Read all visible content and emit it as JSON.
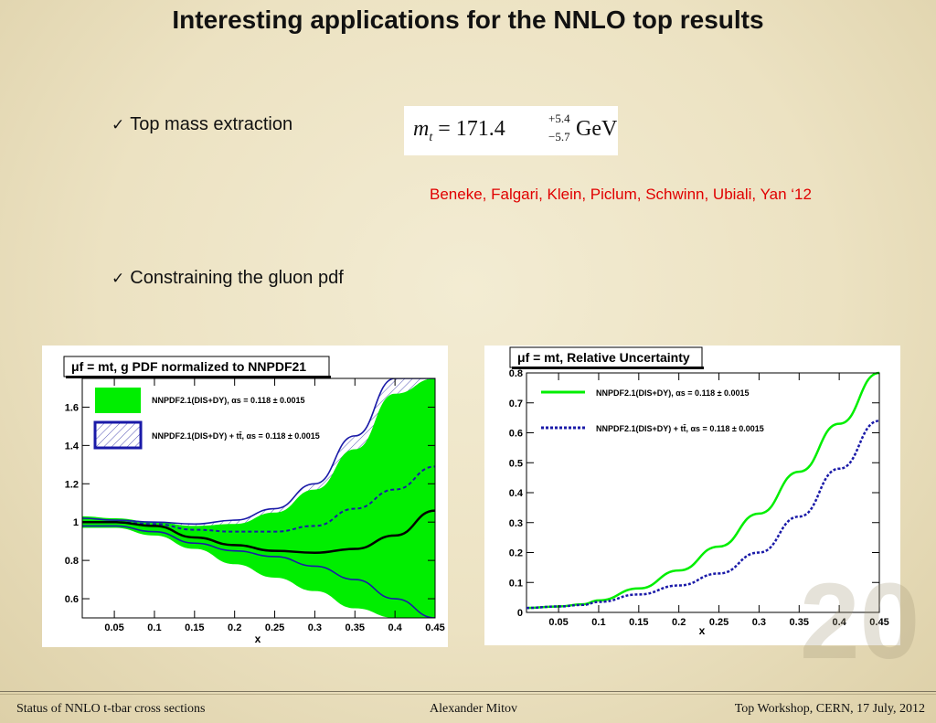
{
  "slide": {
    "title": "Interesting applications for the NNLO top results",
    "bullet1": "Top mass extraction",
    "bullet2": "Constraining the gluon pdf",
    "check_glyph": "✓",
    "formula": {
      "lhs": "m",
      "lhs_sub": "t",
      "eq": " = 171.4",
      "sup": "+5.4",
      "sub": "−5.7",
      "unit": "GeV"
    },
    "citation": "Beneke, Falgari, Klein, Piclum, Schwinn, Ubiali, Yan ‘12",
    "page_number": "20"
  },
  "footer": {
    "left": "Status of NNLO t-tbar cross sections",
    "center": "Alexander Mitov",
    "right": "Top Workshop, CERN, 17 July, 2012"
  },
  "colors": {
    "green": "#00ee00",
    "blue": "#1a1aa8",
    "citation_red": "#e00000"
  },
  "chart_data": [
    {
      "type": "area",
      "title": "μf = mt, g PDF normalized to NNPDF21",
      "xlabel": "x",
      "ylabel": "",
      "xlim": [
        0.01,
        0.45
      ],
      "ylim": [
        0.5,
        1.75
      ],
      "xticks": [
        "0.05",
        "0.1",
        "0.15",
        "0.2",
        "0.25",
        "0.3",
        "0.35",
        "0.4",
        "0.45"
      ],
      "yticks": [
        "0.6",
        "0.8",
        "1",
        "1.2",
        "1.4",
        "1.6"
      ],
      "legend": [
        "NNPDF2.1(DIS+DY), αs = 0.118 ± 0.0015",
        "NNPDF2.1(DIS+DY) + tt̄, αs = 0.118 ± 0.0015"
      ],
      "x": [
        0.01,
        0.05,
        0.1,
        0.15,
        0.2,
        0.25,
        0.3,
        0.35,
        0.4,
        0.45
      ],
      "series": [
        {
          "name": "NNPDF2.1(DIS+DY), αs = 0.118 ± 0.0015",
          "lower": [
            0.97,
            0.97,
            0.93,
            0.86,
            0.78,
            0.71,
            0.64,
            0.55,
            0.5,
            0.5
          ],
          "upper": [
            1.03,
            1.02,
            1.0,
            0.98,
            0.99,
            1.05,
            1.17,
            1.38,
            1.67,
            1.75
          ]
        },
        {
          "name": "NNPDF2.1(DIS+DY) + tt̄, αs = 0.118 ± 0.0015",
          "lower": [
            0.98,
            0.98,
            0.95,
            0.89,
            0.85,
            0.82,
            0.77,
            0.7,
            0.6,
            0.5
          ],
          "central": [
            1.0,
            1.0,
            0.99,
            0.96,
            0.95,
            0.95,
            0.98,
            1.07,
            1.17,
            1.29
          ],
          "upper": [
            1.02,
            1.01,
            1.0,
            0.99,
            1.01,
            1.07,
            1.2,
            1.45,
            1.75,
            1.75
          ]
        },
        {
          "name": "",
          "central": [
            1.0,
            1.0,
            0.98,
            0.92,
            0.88,
            0.85,
            0.84,
            0.86,
            0.93,
            1.06
          ]
        }
      ]
    },
    {
      "type": "line",
      "title": "μf = mt, Relative Uncertainty",
      "xlabel": "x",
      "ylabel": "",
      "xlim": [
        0.01,
        0.45
      ],
      "ylim": [
        0,
        0.8
      ],
      "xticks": [
        "0.05",
        "0.1",
        "0.15",
        "0.2",
        "0.25",
        "0.3",
        "0.35",
        "0.4",
        "0.45"
      ],
      "yticks": [
        "0",
        "0.1",
        "0.2",
        "0.3",
        "0.4",
        "0.5",
        "0.6",
        "0.7",
        "0.8"
      ],
      "x": [
        0.01,
        0.05,
        0.08,
        0.1,
        0.15,
        0.2,
        0.25,
        0.3,
        0.35,
        0.4,
        0.45
      ],
      "series": [
        {
          "name": "NNPDF2.1(DIS+DY), αs = 0.118 ± 0.0015",
          "values": [
            0.015,
            0.02,
            0.027,
            0.04,
            0.08,
            0.14,
            0.22,
            0.33,
            0.47,
            0.63,
            0.8
          ]
        },
        {
          "name": "NNPDF2.1(DIS+DY) + tt̄, αs = 0.118 ± 0.0015",
          "values": [
            0.015,
            0.02,
            0.025,
            0.035,
            0.06,
            0.09,
            0.13,
            0.2,
            0.32,
            0.48,
            0.64
          ]
        }
      ]
    }
  ]
}
